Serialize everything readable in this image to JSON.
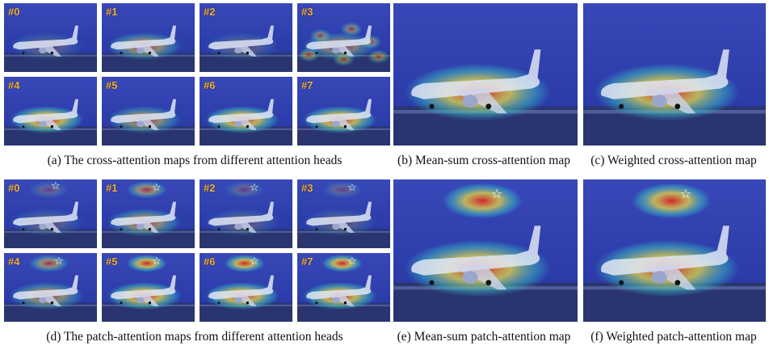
{
  "figure": {
    "rows": [
      {
        "id": "cross",
        "heads": [
          {
            "label": "#0",
            "heat": "low"
          },
          {
            "label": "#1",
            "heat": "mid"
          },
          {
            "label": "#2",
            "heat": "low"
          },
          {
            "label": "#3",
            "heat": "scatter"
          },
          {
            "label": "#4",
            "heat": "high"
          },
          {
            "label": "#5",
            "heat": "mid"
          },
          {
            "label": "#6",
            "heat": "high"
          },
          {
            "label": "#7",
            "heat": "high"
          }
        ],
        "captions": {
          "grid": "(a) The cross-attention maps from different attention heads",
          "mean": "(b) Mean-sum cross-attention map",
          "weighted": "(c) Weighted cross-attention map"
        }
      },
      {
        "id": "patch",
        "heads": [
          {
            "label": "#0",
            "heat": "low"
          },
          {
            "label": "#1",
            "heat": "mid"
          },
          {
            "label": "#2",
            "heat": "low"
          },
          {
            "label": "#3",
            "heat": "low"
          },
          {
            "label": "#4",
            "heat": "mid"
          },
          {
            "label": "#5",
            "heat": "high"
          },
          {
            "label": "#6",
            "heat": "high"
          },
          {
            "label": "#7",
            "heat": "high"
          }
        ],
        "captions": {
          "grid": "(d) The patch-attention maps from different attention heads",
          "mean": "(e) Mean-sum patch-attention map",
          "weighted": "(f) Weighted patch-attention map"
        }
      }
    ],
    "colors": {
      "background": "#2a3dae",
      "label": "#f2b13a",
      "hot": "#e0201a",
      "warm": "#f2e040",
      "cool": "#38c6c8"
    },
    "icons": {
      "query_point": "star-icon"
    }
  }
}
